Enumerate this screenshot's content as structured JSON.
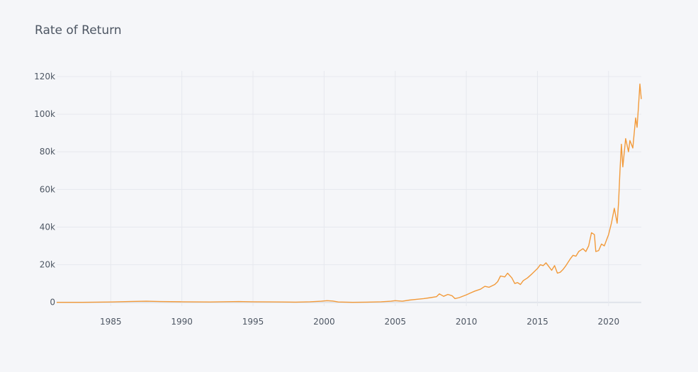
{
  "chart_data": {
    "type": "line",
    "title": "Rate of Return",
    "xlabel": "",
    "ylabel": "",
    "xlim": [
      1981.2,
      2022.3
    ],
    "ylim": [
      -2000,
      123000
    ],
    "x_ticks": [
      1985,
      1990,
      1995,
      2000,
      2005,
      2010,
      2015,
      2020
    ],
    "x_tick_labels": [
      "1985",
      "1990",
      "1995",
      "2000",
      "2005",
      "2010",
      "2015",
      "2020"
    ],
    "y_ticks": [
      0,
      20000,
      40000,
      60000,
      80000,
      100000,
      120000
    ],
    "y_tick_labels": [
      "0",
      "20k",
      "40k",
      "60k",
      "80k",
      "100k",
      "120k"
    ],
    "grid": true,
    "legend": "none",
    "colors": {
      "line": "#f29a3a",
      "grid": "#e6e8ee",
      "zeroline": "#dfe3ea",
      "background": "#f5f6f9",
      "text": "#4d5663"
    },
    "series": [
      {
        "x": [
          1981.2,
          1983,
          1985,
          1986.5,
          1987.5,
          1988.5,
          1990,
          1992,
          1994,
          1995,
          1997,
          1998,
          1999,
          1999.8,
          2000.2,
          2000.6,
          2001,
          2002,
          2003,
          2004,
          2004.7,
          2005,
          2005.5,
          2006,
          2006.5,
          2007,
          2007.5,
          2007.9,
          2008.1,
          2008.4,
          2008.7,
          2009,
          2009.2,
          2009.5,
          2010,
          2010.3,
          2010.6,
          2011,
          2011.3,
          2011.6,
          2012,
          2012.2,
          2012.4,
          2012.7,
          2012.9,
          2013.2,
          2013.4,
          2013.6,
          2013.8,
          2014,
          2014.3,
          2014.6,
          2015,
          2015.2,
          2015.4,
          2015.6,
          2015.8,
          2016,
          2016.2,
          2016.4,
          2016.6,
          2016.8,
          2017,
          2017.3,
          2017.5,
          2017.7,
          2017.9,
          2018,
          2018.2,
          2018.4,
          2018.6,
          2018.8,
          2019,
          2019.1,
          2019.3,
          2019.5,
          2019.7,
          2019.9,
          2020,
          2020.2,
          2020.4,
          2020.6,
          2020.7,
          2020.8,
          2020.9,
          2021,
          2021.2,
          2021.4,
          2021.5,
          2021.7,
          2021.8,
          2021.9,
          2022,
          2022.1,
          2022.2,
          2022.3
        ],
        "y": [
          0,
          0,
          200,
          500,
          600,
          400,
          300,
          200,
          400,
          300,
          200,
          100,
          300,
          600,
          900,
          700,
          200,
          0,
          100,
          300,
          600,
          900,
          600,
          1200,
          1600,
          2000,
          2500,
          3000,
          4500,
          3200,
          4200,
          3500,
          2000,
          2500,
          4000,
          5000,
          6000,
          7000,
          8500,
          8000,
          9500,
          11000,
          14000,
          13500,
          15500,
          13000,
          10000,
          10500,
          9500,
          11500,
          13000,
          15000,
          18000,
          20000,
          19500,
          21000,
          19000,
          17000,
          19500,
          15500,
          16000,
          17500,
          19500,
          23000,
          25000,
          24500,
          27000,
          27500,
          28500,
          27000,
          30000,
          37000,
          36000,
          27000,
          27500,
          31000,
          30000,
          34000,
          36000,
          42000,
          50000,
          42000,
          53000,
          70000,
          84000,
          72000,
          87000,
          80000,
          86000,
          82000,
          90000,
          98000,
          93000,
          104000,
          116000,
          108000
        ]
      }
    ]
  }
}
